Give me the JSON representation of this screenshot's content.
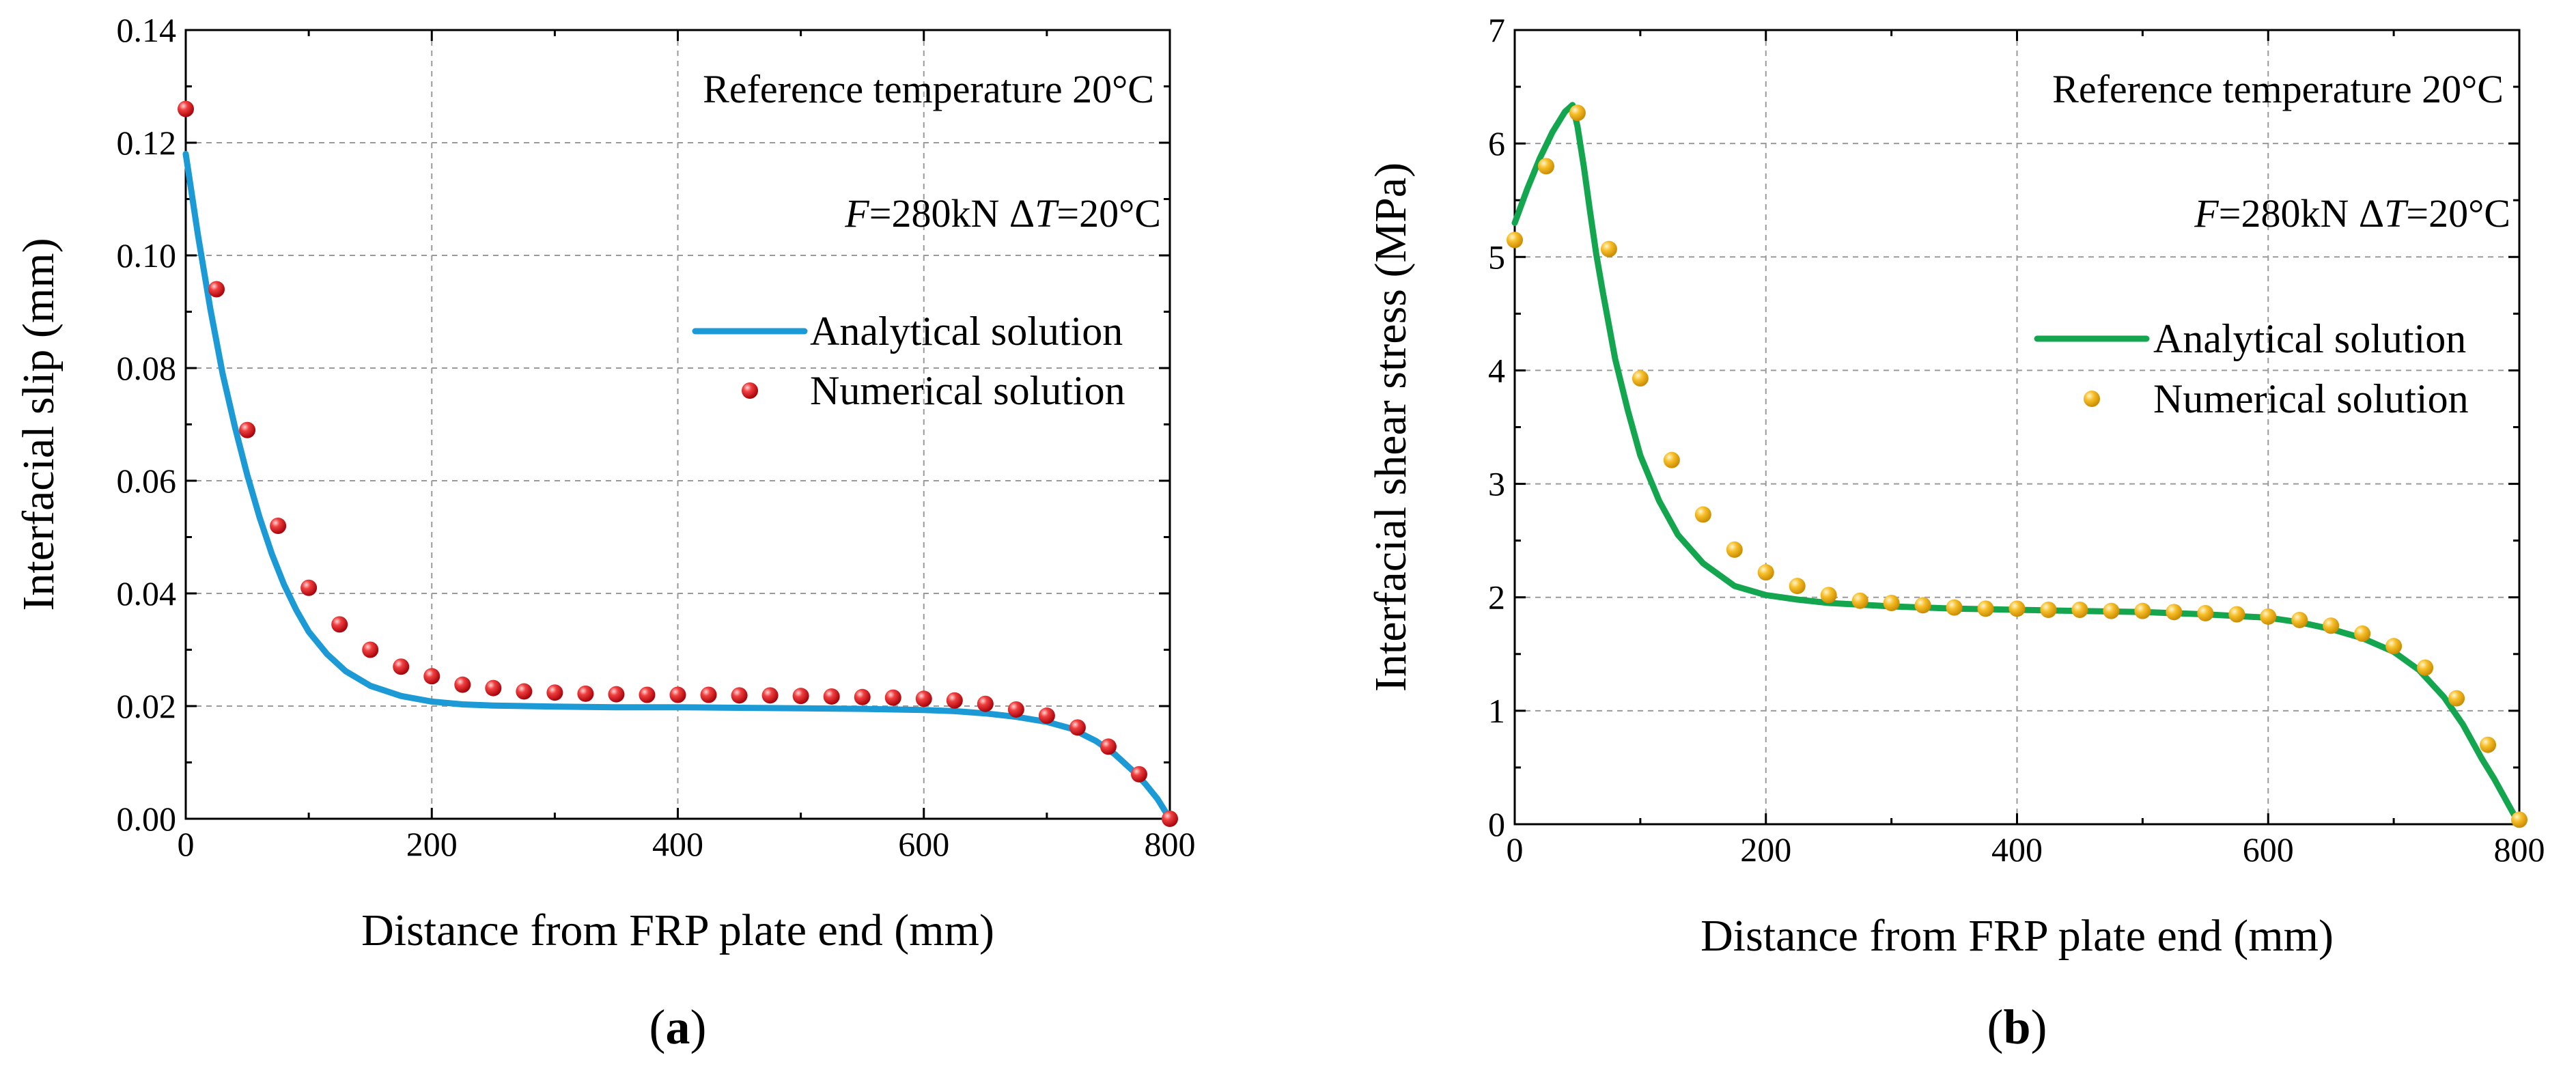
{
  "chart_data": [
    {
      "panel_label": "a",
      "type": "line+scatter",
      "xlabel": "Distance from FRP plate end (mm)",
      "ylabel": "Interfacial slip (mm)",
      "xlim": [
        0,
        800
      ],
      "ylim": [
        0,
        0.14
      ],
      "x_ticks": [
        "0",
        "200",
        "400",
        "600",
        "800"
      ],
      "y_ticks": [
        "0.00",
        "0.02",
        "0.04",
        "0.06",
        "0.08",
        "0.10",
        "0.12",
        "0.14"
      ],
      "grid": true,
      "annotation_line1": "Reference temperature 20°C",
      "annotation_line2_force": "=280kN  Δ",
      "annotation_line2_dt": "=20°C",
      "legend_position": "right",
      "series": [
        {
          "name": "Analytical solution",
          "kind": "line",
          "color": "#1b9ad6",
          "x": [
            0,
            10,
            20,
            30,
            40,
            50,
            60,
            70,
            80,
            90,
            100,
            115,
            130,
            150,
            175,
            200,
            225,
            250,
            300,
            350,
            400,
            450,
            500,
            550,
            600,
            625,
            650,
            675,
            700,
            720,
            740,
            755,
            770,
            780,
            790,
            800
          ],
          "y": [
            0.118,
            0.1035,
            0.0905,
            0.079,
            0.0695,
            0.061,
            0.0535,
            0.047,
            0.0415,
            0.037,
            0.0332,
            0.0292,
            0.0262,
            0.0236,
            0.0218,
            0.0208,
            0.0203,
            0.0201,
            0.0199,
            0.0198,
            0.0198,
            0.0197,
            0.0196,
            0.0195,
            0.0193,
            0.0191,
            0.0187,
            0.0181,
            0.0172,
            0.016,
            0.0138,
            0.0115,
            0.0085,
            0.0062,
            0.0035,
            0.0
          ]
        },
        {
          "name": "Numerical solution",
          "kind": "scatter",
          "color": "#e3141b",
          "x": [
            0,
            25,
            50,
            75,
            100,
            125,
            150,
            175,
            200,
            225,
            250,
            275,
            300,
            325,
            350,
            375,
            400,
            425,
            450,
            475,
            500,
            525,
            550,
            575,
            600,
            625,
            650,
            675,
            700,
            725,
            750,
            775,
            800
          ],
          "y": [
            0.126,
            0.094,
            0.069,
            0.052,
            0.041,
            0.0345,
            0.03,
            0.027,
            0.0253,
            0.0238,
            0.0232,
            0.0226,
            0.0224,
            0.0222,
            0.0221,
            0.022,
            0.022,
            0.022,
            0.0219,
            0.0219,
            0.0218,
            0.0217,
            0.0216,
            0.0215,
            0.0213,
            0.021,
            0.0204,
            0.0194,
            0.0183,
            0.0162,
            0.0128,
            0.0079,
            0.0
          ]
        }
      ]
    },
    {
      "panel_label": "b",
      "type": "line+scatter",
      "xlabel": "Distance from FRP plate end (mm)",
      "ylabel": "Interfacial shear stress (MPa)",
      "xlim": [
        0,
        800
      ],
      "ylim": [
        0,
        7
      ],
      "x_ticks": [
        "0",
        "200",
        "400",
        "600",
        "800"
      ],
      "y_ticks": [
        "0",
        "1",
        "2",
        "3",
        "4",
        "5",
        "6",
        "7"
      ],
      "grid": true,
      "annotation_line1": "Reference temperature 20°C",
      "annotation_line2_force": "=280kN  Δ",
      "annotation_line2_dt": "=20°C",
      "legend_position": "right",
      "series": [
        {
          "name": "Analytical solution",
          "kind": "line",
          "color": "#14a64f",
          "x": [
            0,
            10,
            20,
            30,
            40,
            46,
            50,
            55,
            60,
            65,
            70,
            80,
            90,
            100,
            115,
            130,
            150,
            175,
            200,
            225,
            250,
            300,
            350,
            400,
            450,
            500,
            550,
            600,
            625,
            650,
            675,
            700,
            720,
            740,
            755,
            770,
            780,
            790,
            800
          ],
          "y": [
            5.3,
            5.6,
            5.87,
            6.1,
            6.28,
            6.34,
            6.15,
            5.8,
            5.4,
            5.02,
            4.7,
            4.1,
            3.65,
            3.25,
            2.85,
            2.55,
            2.3,
            2.1,
            2.02,
            1.98,
            1.95,
            1.92,
            1.9,
            1.89,
            1.88,
            1.87,
            1.85,
            1.82,
            1.78,
            1.72,
            1.64,
            1.52,
            1.36,
            1.12,
            0.88,
            0.58,
            0.4,
            0.2,
            0.0
          ]
        },
        {
          "name": "Numerical solution",
          "kind": "scatter",
          "color": "#f5b81c",
          "x": [
            0,
            25,
            50,
            75,
            100,
            125,
            150,
            175,
            200,
            225,
            250,
            275,
            300,
            325,
            350,
            375,
            400,
            425,
            450,
            475,
            500,
            525,
            550,
            575,
            600,
            625,
            650,
            675,
            700,
            725,
            750,
            775,
            800
          ],
          "y": [
            5.15,
            5.8,
            6.27,
            5.07,
            3.93,
            3.21,
            2.73,
            2.42,
            2.22,
            2.1,
            2.02,
            1.97,
            1.95,
            1.93,
            1.91,
            1.9,
            1.9,
            1.89,
            1.89,
            1.88,
            1.88,
            1.87,
            1.86,
            1.85,
            1.83,
            1.8,
            1.75,
            1.68,
            1.57,
            1.38,
            1.11,
            0.7,
            0.04
          ]
        }
      ]
    }
  ]
}
